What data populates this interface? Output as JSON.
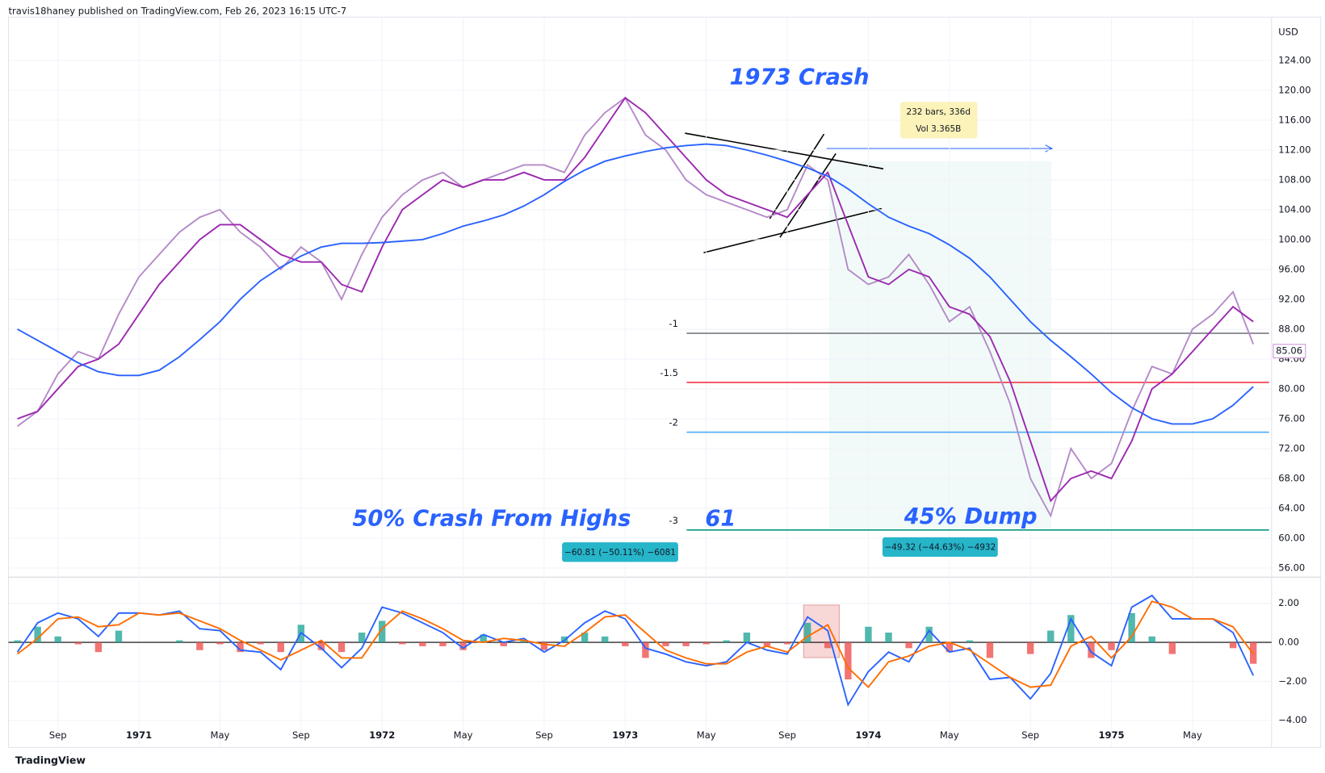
{
  "header": "travis18haney published on TradingView.com, Feb 26, 2023 16:15 UTC-7",
  "currency": "USD",
  "footer": "TradingView",
  "chart_data": [
    {
      "type": "line",
      "categories": [
        null,
        null,
        "Sep",
        null,
        null,
        null,
        "1971",
        null,
        null,
        null,
        "May",
        null,
        null,
        null,
        "Sep",
        null,
        null,
        null,
        "1972",
        null,
        null,
        null,
        "May",
        null,
        null,
        null,
        "Sep",
        null,
        null,
        null,
        "1973",
        null,
        null,
        null,
        "May",
        null,
        null,
        null,
        "Sep",
        null,
        null,
        null,
        "1974",
        null,
        null,
        null,
        "May",
        null,
        null,
        null,
        "Sep",
        null,
        null,
        null,
        "1975",
        null,
        null,
        null,
        "May",
        null,
        null,
        null
      ],
      "series": [
        {
          "color": "#b48ac8",
          "values": [
            75,
            77,
            82,
            85,
            84,
            90,
            95,
            98,
            101,
            103,
            104,
            101,
            99,
            96,
            99,
            97,
            92,
            98,
            103,
            106,
            108,
            109,
            107,
            108,
            109,
            110,
            110,
            109,
            114,
            117,
            119,
            114,
            112,
            108,
            106,
            105,
            104,
            103,
            104,
            110,
            108,
            96,
            94,
            95,
            98,
            94,
            89,
            91,
            85,
            78,
            68,
            63,
            72,
            68,
            70,
            77,
            83,
            82,
            88,
            90,
            93,
            86
          ]
        },
        {
          "color": "#9c27b0",
          "values": [
            76,
            77,
            80,
            83,
            84,
            86,
            90,
            94,
            97,
            100,
            102,
            102,
            100,
            98,
            97,
            97,
            94,
            93,
            99,
            104,
            106,
            108,
            107,
            108,
            108,
            109,
            108,
            108,
            111,
            115,
            119,
            117,
            114,
            111,
            108,
            106,
            105,
            104,
            103,
            106,
            109,
            102,
            95,
            94,
            96,
            95,
            91,
            90,
            87,
            81,
            73,
            65,
            68,
            69,
            68,
            73,
            80,
            82,
            85,
            88,
            91,
            89
          ]
        },
        {
          "color": "#2962ff",
          "values": [
            88,
            86.5,
            85,
            83.5,
            82.3,
            81.8,
            81.8,
            82.5,
            84.3,
            86.6,
            89,
            92,
            94.5,
            96.3,
            97.8,
            99,
            99.5,
            99.5,
            99.6,
            99.8,
            100,
            100.8,
            101.8,
            102.5,
            103.3,
            104.5,
            106,
            107.8,
            109.3,
            110.5,
            111.2,
            111.8,
            112.3,
            112.6,
            112.8,
            112.6,
            112,
            111.3,
            110.5,
            109.6,
            108.5,
            106.8,
            104.8,
            103,
            101.8,
            100.8,
            99.3,
            97.5,
            95,
            92,
            89,
            86.5,
            84.3,
            82,
            79.5,
            77.5,
            76,
            75.3,
            75.3,
            76,
            77.8,
            80.3
          ]
        }
      ],
      "ylim": [
        54.9,
        129.8
      ],
      "yticks": [
        {
          "value": 124,
          "label": "124.00"
        },
        {
          "value": 120,
          "label": "120.00"
        },
        {
          "value": 116,
          "label": "116.00"
        },
        {
          "value": 112,
          "label": "112.00"
        },
        {
          "value": 108,
          "label": "108.00"
        },
        {
          "value": 104,
          "label": "104.00"
        },
        {
          "value": 100,
          "label": "100.00"
        },
        {
          "value": 96,
          "label": "96.00"
        },
        {
          "value": 92,
          "label": "92.00"
        },
        {
          "value": 88,
          "label": "88.00"
        },
        {
          "value": 84,
          "label": "84.00"
        },
        {
          "value": 80,
          "label": "80.00"
        },
        {
          "value": 76,
          "label": "76.00"
        },
        {
          "value": 72,
          "label": "72.00"
        },
        {
          "value": 68,
          "label": "68.00"
        },
        {
          "value": 64,
          "label": "64.00"
        },
        {
          "value": 60,
          "label": "60.00"
        },
        {
          "value": 56,
          "label": "56.00"
        }
      ],
      "last_price": 85.06,
      "fib_levels": [
        {
          "label": "-1",
          "value": 87.45,
          "color": "#787b86"
        },
        {
          "label": "-1.5",
          "value": 80.87,
          "color": "#f23645"
        },
        {
          "label": "-2",
          "value": 74.2,
          "color": "#42a5f5"
        },
        {
          "label": "-3",
          "value": 61.1,
          "color": "#089981"
        }
      ],
      "annotations": [
        "1973 Crash",
        "50% Crash From Highs",
        "61",
        "45% Dump"
      ],
      "measure_box": [
        "232 bars, 336d",
        "Vol 3.365B"
      ],
      "range_labels": [
        "−60.81 (−50.11%) −6081",
        "−49.32 (−44.63%) −4932"
      ]
    },
    {
      "type": "macd",
      "series": [
        {
          "color": "#2962ff",
          "values": [
            -0.5,
            1.0,
            1.5,
            1.2,
            0.3,
            1.5,
            1.5,
            1.4,
            1.6,
            0.7,
            0.6,
            -0.4,
            -0.5,
            -1.4,
            0.5,
            -0.3,
            -1.3,
            -0.3,
            1.8,
            1.5,
            1.0,
            0.5,
            -0.3,
            0.4,
            0.0,
            0.2,
            -0.5,
            0.1,
            1.0,
            1.6,
            1.2,
            -0.3,
            -0.6,
            -1.0,
            -1.2,
            -1.0,
            0.0,
            -0.4,
            -0.6,
            1.3,
            0.6,
            -3.2,
            -1.5,
            -0.5,
            -1.0,
            0.6,
            -0.5,
            -0.3,
            -1.9,
            -1.8,
            -2.9,
            -1.6,
            1.2,
            -0.5,
            -1.2,
            1.8,
            2.4,
            1.2,
            1.2,
            1.2,
            0.5,
            -1.7
          ]
        },
        {
          "color": "#ff6d00",
          "values": [
            -0.6,
            0.2,
            1.2,
            1.3,
            0.8,
            0.9,
            1.5,
            1.4,
            1.5,
            1.1,
            0.7,
            0.1,
            -0.4,
            -0.9,
            -0.4,
            0.1,
            -0.8,
            -0.8,
            0.7,
            1.6,
            1.2,
            0.7,
            0.1,
            0.0,
            0.2,
            0.1,
            -0.1,
            -0.2,
            0.5,
            1.3,
            1.4,
            0.5,
            -0.4,
            -0.8,
            -1.1,
            -1.1,
            -0.5,
            -0.2,
            -0.5,
            0.3,
            0.9,
            -1.3,
            -2.3,
            -1.0,
            -0.7,
            -0.2,
            0.0,
            -0.4,
            -1.1,
            -1.8,
            -2.3,
            -2.2,
            -0.2,
            0.3,
            -0.8,
            0.3,
            2.1,
            1.8,
            1.2,
            1.2,
            0.8,
            -0.6
          ]
        }
      ],
      "histogram": {
        "up_color": "#26a69a",
        "down_color": "#ef5350",
        "values": [
          0.1,
          0.8,
          0.3,
          -0.1,
          -0.5,
          0.6,
          0.0,
          0.0,
          0.1,
          -0.4,
          -0.1,
          -0.5,
          -0.1,
          -0.5,
          0.9,
          -0.4,
          -0.5,
          0.5,
          1.1,
          -0.1,
          -0.2,
          -0.2,
          -0.4,
          0.4,
          -0.2,
          0.1,
          -0.4,
          0.3,
          0.5,
          0.3,
          -0.2,
          -0.8,
          -0.2,
          -0.2,
          -0.1,
          0.1,
          0.5,
          -0.2,
          -0.1,
          1.0,
          -0.3,
          -1.9,
          0.8,
          0.5,
          -0.3,
          0.8,
          -0.5,
          0.1,
          -0.8,
          0.0,
          -0.6,
          0.6,
          1.4,
          -0.8,
          -0.4,
          1.5,
          0.3,
          -0.6,
          0.0,
          0.0,
          -0.3,
          -1.1
        ]
      },
      "ylim": [
        -5.3,
        3.3
      ],
      "yticks": [
        {
          "value": 2,
          "label": "2.00"
        },
        {
          "value": 0,
          "label": "0.00"
        },
        {
          "value": -2,
          "label": "−2.00"
        },
        {
          "value": -4,
          "label": "−4.00"
        }
      ]
    }
  ]
}
